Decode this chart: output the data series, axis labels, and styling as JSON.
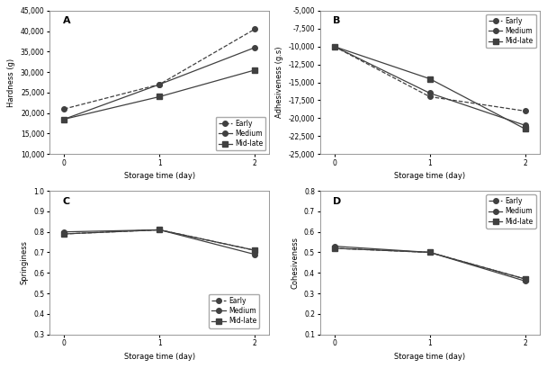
{
  "x": [
    0,
    1,
    2
  ],
  "A": {
    "title": "A",
    "ylabel": "Hardness (g)",
    "xlabel": "Storage time (day)",
    "ylim": [
      10000,
      45000
    ],
    "yticks": [
      10000,
      15000,
      20000,
      25000,
      30000,
      35000,
      40000,
      45000
    ],
    "Early": [
      21000,
      27000,
      40500
    ],
    "Medium": [
      18500,
      27000,
      36000
    ],
    "Mid-late": [
      18500,
      24000,
      30500
    ]
  },
  "B": {
    "title": "B",
    "ylabel": "Adhesiveness (g.s)",
    "xlabel": "Storage time (day)",
    "ylim": [
      -25000,
      -5000
    ],
    "yticks": [
      -25000,
      -22500,
      -20000,
      -17500,
      -15000,
      -12500,
      -10000,
      -7500,
      -5000
    ],
    "Early": [
      -10000,
      -17000,
      -19000
    ],
    "Medium": [
      -10000,
      -16500,
      -21000
    ],
    "Mid-late": [
      -10000,
      -14500,
      -21500
    ]
  },
  "C": {
    "title": "C",
    "ylabel": "Springiness",
    "xlabel": "Storage time (day)",
    "ylim": [
      0.3,
      1.0
    ],
    "yticks": [
      0.3,
      0.4,
      0.5,
      0.6,
      0.7,
      0.8,
      0.9,
      1.0
    ],
    "Early": [
      0.79,
      0.81,
      0.71
    ],
    "Medium": [
      0.8,
      0.81,
      0.69
    ],
    "Mid-late": [
      0.79,
      0.81,
      0.71
    ]
  },
  "D": {
    "title": "D",
    "ylabel": "Cohesiveness",
    "xlabel": "Storage time (day)",
    "ylim": [
      0.1,
      0.8
    ],
    "yticks": [
      0.1,
      0.2,
      0.3,
      0.4,
      0.5,
      0.6,
      0.7,
      0.8
    ],
    "Early": [
      0.52,
      0.5,
      0.37
    ],
    "Medium": [
      0.53,
      0.5,
      0.36
    ],
    "Mid-late": [
      0.52,
      0.5,
      0.37
    ]
  },
  "legend_labels": [
    "Early",
    "Medium",
    "Mid-late"
  ],
  "color": "#404040"
}
